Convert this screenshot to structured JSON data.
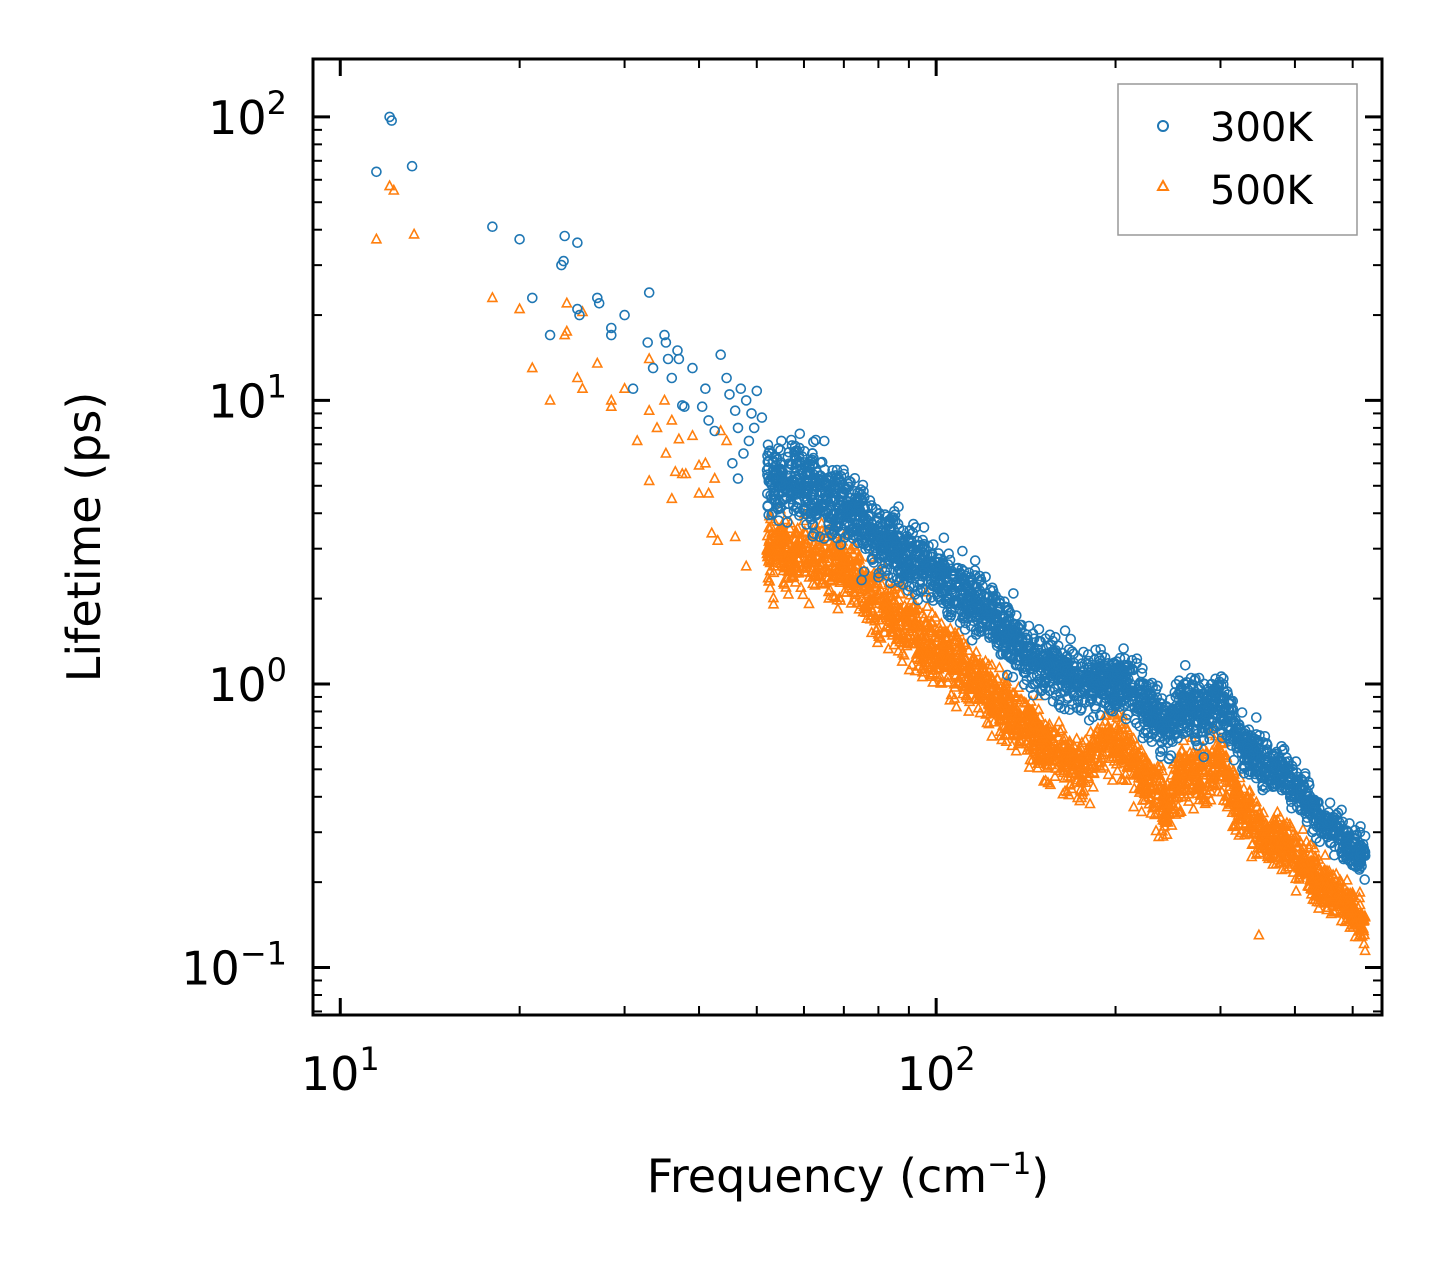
{
  "chart_data": {
    "type": "scatter",
    "x_scale": "log",
    "y_scale": "log",
    "xlabel": "Frequency (cm",
    "xlabel_superscript": "−1",
    "xlabel_suffix": ")",
    "ylabel": "Lifetime (ps)",
    "xlim": [
      9.0,
      560
    ],
    "ylim": [
      0.068,
      160
    ],
    "x_ticks": [
      {
        "value": 10,
        "base": "10",
        "exp": "1"
      },
      {
        "value": 100,
        "base": "10",
        "exp": "2"
      }
    ],
    "y_ticks": [
      {
        "value": 0.1,
        "base": "10",
        "exp": "−1"
      },
      {
        "value": 1,
        "base": "10",
        "exp": "0"
      },
      {
        "value": 10,
        "base": "10",
        "exp": "1"
      },
      {
        "value": 100,
        "base": "10",
        "exp": "2"
      }
    ],
    "legend_position": "top-right",
    "series": [
      {
        "name": "300K",
        "marker": "circle",
        "color": "#1f77b4",
        "points": [
          [
            11.5,
            64
          ],
          [
            12.1,
            100
          ],
          [
            12.2,
            97
          ],
          [
            13.2,
            67
          ],
          [
            18,
            41
          ],
          [
            20,
            37
          ],
          [
            21,
            23
          ],
          [
            22.5,
            17
          ],
          [
            23.5,
            30
          ],
          [
            23.7,
            31
          ],
          [
            23.8,
            38
          ],
          [
            25,
            36
          ],
          [
            25,
            21
          ],
          [
            25.2,
            20
          ],
          [
            27,
            23
          ],
          [
            27.2,
            22
          ],
          [
            28.5,
            18
          ],
          [
            28.5,
            17
          ],
          [
            30,
            20
          ],
          [
            31,
            11
          ],
          [
            33,
            24
          ],
          [
            32.8,
            16
          ],
          [
            33.5,
            13
          ],
          [
            35,
            17
          ],
          [
            35.2,
            16
          ],
          [
            35.5,
            14
          ],
          [
            36,
            12
          ],
          [
            36.8,
            15
          ],
          [
            37,
            14
          ],
          [
            37.5,
            9.6
          ],
          [
            37.8,
            9.5
          ],
          [
            39,
            13
          ],
          [
            40.5,
            9.5
          ],
          [
            41,
            11
          ],
          [
            41.5,
            8.5
          ],
          [
            42.5,
            7.8
          ],
          [
            43.5,
            14.5
          ],
          [
            44.5,
            12
          ],
          [
            45,
            10.5
          ],
          [
            46,
            9.2
          ],
          [
            46.5,
            8
          ],
          [
            47,
            11
          ],
          [
            48,
            10
          ],
          [
            49,
            9
          ],
          [
            49.5,
            8
          ],
          [
            50,
            10.8
          ],
          [
            51,
            8.7
          ],
          [
            45.5,
            6
          ],
          [
            46.5,
            5.3
          ],
          [
            47.5,
            6.5
          ],
          [
            48.5,
            7.2
          ],
          [
            53,
            6.5
          ],
          [
            55,
            7.2
          ],
          [
            58,
            6.9
          ],
          [
            62,
            6.5
          ],
          [
            65,
            5.7
          ],
          [
            70,
            5.5
          ]
        ],
        "trend": [
          [
            52,
            5.6,
            0.18
          ],
          [
            60,
            5.0,
            0.18
          ],
          [
            70,
            4.2,
            0.17
          ],
          [
            80,
            3.3,
            0.16
          ],
          [
            90,
            2.75,
            0.15
          ],
          [
            100,
            2.4,
            0.15
          ],
          [
            115,
            2.0,
            0.14
          ],
          [
            130,
            1.55,
            0.14
          ],
          [
            145,
            1.25,
            0.13
          ],
          [
            160,
            1.1,
            0.13
          ],
          [
            175,
            1.0,
            0.13
          ],
          [
            190,
            1.05,
            0.14
          ],
          [
            210,
            1.0,
            0.13
          ],
          [
            230,
            0.78,
            0.13
          ],
          [
            245,
            0.72,
            0.12
          ],
          [
            260,
            0.85,
            0.14
          ],
          [
            280,
            0.8,
            0.14
          ],
          [
            300,
            0.9,
            0.15
          ],
          [
            320,
            0.65,
            0.12
          ],
          [
            350,
            0.52,
            0.11
          ],
          [
            380,
            0.5,
            0.11
          ],
          [
            410,
            0.42,
            0.1
          ],
          [
            440,
            0.33,
            0.09
          ],
          [
            470,
            0.3,
            0.1
          ],
          [
            500,
            0.26,
            0.1
          ],
          [
            525,
            0.25,
            0.1
          ]
        ]
      },
      {
        "name": "500K",
        "marker": "triangle",
        "color": "#ff7f0e",
        "points": [
          [
            11.5,
            37
          ],
          [
            12.1,
            57
          ],
          [
            12.3,
            55
          ],
          [
            13.3,
            38.5
          ],
          [
            18,
            23
          ],
          [
            20,
            21
          ],
          [
            21,
            13
          ],
          [
            22.5,
            10
          ],
          [
            23.8,
            17
          ],
          [
            24,
            17.5
          ],
          [
            24,
            22
          ],
          [
            25,
            12
          ],
          [
            25.5,
            20.5
          ],
          [
            25.5,
            11
          ],
          [
            27,
            13.5
          ],
          [
            28.5,
            10
          ],
          [
            28.5,
            9.5
          ],
          [
            30,
            11
          ],
          [
            31.5,
            7.2
          ],
          [
            33,
            14
          ],
          [
            33,
            9.2
          ],
          [
            34,
            8
          ],
          [
            35,
            10
          ],
          [
            35.2,
            6.5
          ],
          [
            36,
            8.5
          ],
          [
            36.5,
            5.6
          ],
          [
            37,
            7.3
          ],
          [
            37.5,
            5.5
          ],
          [
            38,
            5.5
          ],
          [
            33,
            5.2
          ],
          [
            39,
            7.5
          ],
          [
            40,
            5.9
          ],
          [
            41,
            6
          ],
          [
            41.5,
            4.7
          ],
          [
            42.5,
            5.3
          ],
          [
            43.5,
            7.8
          ],
          [
            44.5,
            7.2
          ],
          [
            42,
            3.4
          ],
          [
            43,
            3.2
          ],
          [
            46,
            3.3
          ],
          [
            48,
            2.6
          ],
          [
            36,
            4.5
          ],
          [
            40,
            4.7
          ],
          [
            348,
            0.13
          ]
        ],
        "trend": [
          [
            52,
            3.0,
            0.17
          ],
          [
            60,
            2.85,
            0.17
          ],
          [
            70,
            2.7,
            0.16
          ],
          [
            80,
            1.9,
            0.16
          ],
          [
            90,
            1.6,
            0.15
          ],
          [
            100,
            1.35,
            0.15
          ],
          [
            115,
            1.05,
            0.14
          ],
          [
            130,
            0.82,
            0.14
          ],
          [
            145,
            0.68,
            0.13
          ],
          [
            160,
            0.55,
            0.14
          ],
          [
            175,
            0.5,
            0.14
          ],
          [
            190,
            0.62,
            0.13
          ],
          [
            210,
            0.58,
            0.13
          ],
          [
            230,
            0.42,
            0.14
          ],
          [
            245,
            0.36,
            0.14
          ],
          [
            260,
            0.5,
            0.14
          ],
          [
            280,
            0.45,
            0.14
          ],
          [
            300,
            0.55,
            0.14
          ],
          [
            320,
            0.38,
            0.13
          ],
          [
            350,
            0.3,
            0.12
          ],
          [
            380,
            0.28,
            0.12
          ],
          [
            410,
            0.24,
            0.11
          ],
          [
            440,
            0.2,
            0.11
          ],
          [
            470,
            0.18,
            0.1
          ],
          [
            500,
            0.16,
            0.1
          ],
          [
            525,
            0.14,
            0.1
          ]
        ]
      }
    ]
  }
}
